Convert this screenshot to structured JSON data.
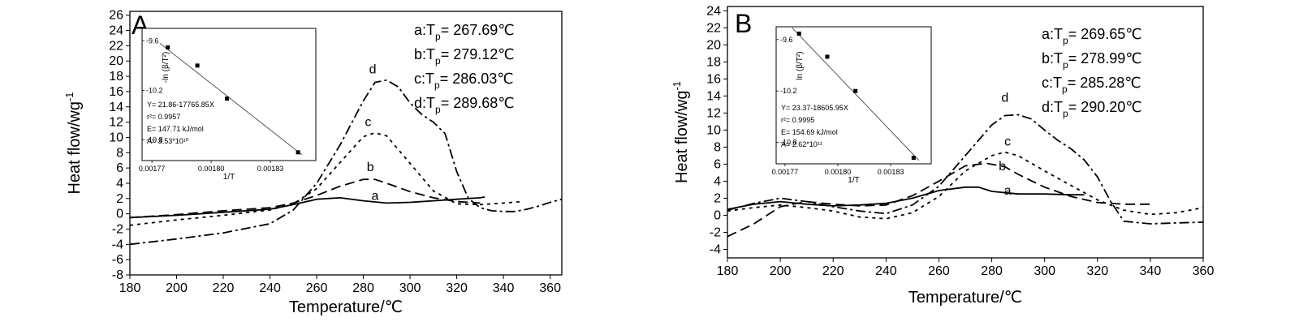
{
  "chart_data": [
    {
      "panel_letter": "A",
      "type": "line",
      "xlabel": "Temperature/℃",
      "ylabel": "Heat flow/wg",
      "ylabel_sup": "-1",
      "xlim": [
        180,
        365
      ],
      "ylim": [
        -8,
        26.5
      ],
      "xticks": [
        180,
        200,
        220,
        240,
        260,
        280,
        300,
        320,
        340,
        360
      ],
      "yticks": [
        -8,
        -6,
        -4,
        -2,
        0,
        2,
        4,
        6,
        8,
        10,
        12,
        14,
        16,
        18,
        20,
        22,
        24,
        26
      ],
      "tp_annotations": [
        {
          "prefix": "a:T",
          "sub": "p",
          "value": "= 267.69℃"
        },
        {
          "prefix": "b:T",
          "sub": "p",
          "value": "= 279.12℃"
        },
        {
          "prefix": "c:T",
          "sub": "p",
          "value": "= 286.03℃"
        },
        {
          "prefix": "d:T",
          "sub": "p",
          "value": "= 289.68℃"
        }
      ],
      "series": [
        {
          "name": "a",
          "label_at": [
            285,
            1.8
          ],
          "dash": "none",
          "x": [
            180,
            200,
            220,
            240,
            250,
            260,
            270,
            280,
            290,
            300,
            310,
            320,
            330,
            332
          ],
          "y": [
            -0.5,
            -0.2,
            0.2,
            0.6,
            1.2,
            1.9,
            2.1,
            1.7,
            1.4,
            1.5,
            1.7,
            1.9,
            2.1,
            2.2
          ]
        },
        {
          "name": "b",
          "label_at": [
            283,
            5.6
          ],
          "dash": "12,6",
          "x": [
            180,
            200,
            220,
            240,
            250,
            260,
            270,
            280,
            285,
            290,
            300,
            310,
            320,
            325,
            330
          ],
          "y": [
            -0.5,
            -0.1,
            0.4,
            0.8,
            1.4,
            2.4,
            3.6,
            4.5,
            4.5,
            4.0,
            2.9,
            2.1,
            1.6,
            1.5,
            1.4
          ]
        },
        {
          "name": "c",
          "label_at": [
            282,
            11.5
          ],
          "dash": "4,5",
          "x": [
            180,
            200,
            220,
            240,
            250,
            260,
            270,
            280,
            285,
            290,
            300,
            310,
            320,
            330,
            340,
            348
          ],
          "y": [
            -1.5,
            -0.8,
            -0.2,
            0.5,
            1.3,
            3.3,
            6.7,
            10.1,
            10.6,
            10.2,
            6.6,
            3.0,
            1.3,
            1.2,
            1.4,
            1.6
          ]
        },
        {
          "name": "d",
          "label_at": [
            284,
            18.4
          ],
          "dash": "12,4,3,4",
          "x": [
            180,
            200,
            220,
            240,
            250,
            260,
            270,
            280,
            285,
            290,
            295,
            300,
            305,
            310,
            315,
            320,
            325,
            330,
            335,
            340,
            345,
            350,
            355,
            360,
            365
          ],
          "y": [
            -4.0,
            -3.3,
            -2.5,
            -1.3,
            0.5,
            4.0,
            9.0,
            14.8,
            17.2,
            17.5,
            16.6,
            14.5,
            13.0,
            12.0,
            10.5,
            5.5,
            2.0,
            0.8,
            0.4,
            0.3,
            0.3,
            0.6,
            1.0,
            1.5,
            1.9
          ]
        }
      ],
      "inset": {
        "xlabel": "1/T",
        "ylabel": "-ln (β/T²)",
        "xticks": [
          0.00177,
          0.0018,
          0.00183
        ],
        "xtick_labels": [
          "0.00177",
          "0.00180",
          "0.00183"
        ],
        "yticks": [
          -9.6,
          -10.2,
          -10.8
        ],
        "ytick_labels": [
          "-9.6",
          "-10.2",
          "-10.8"
        ],
        "xlim": [
          0.001765,
          0.001853
        ],
        "ylim": [
          -11.05,
          -9.45
        ],
        "points": {
          "x": [
            0.001778,
            0.001793,
            0.001808,
            0.001844
          ],
          "y": [
            -9.68,
            -9.9,
            -10.3,
            -10.95
          ]
        },
        "fit_x": [
          0.001774,
          0.001846
        ],
        "fit_y": [
          -9.63,
          -10.98
        ],
        "annotations": [
          "Y= 21.86-17765.85X",
          "r²= 0.9957",
          "E= 147.71 kJ/mol",
          "A= 3.53*10¹⁰"
        ]
      }
    },
    {
      "panel_letter": "B",
      "type": "line",
      "xlabel": "Temperature/℃",
      "ylabel": "Heat flow/wg",
      "ylabel_sup": "-1",
      "xlim": [
        180,
        360
      ],
      "ylim": [
        -5,
        24.5
      ],
      "xticks": [
        180,
        200,
        220,
        240,
        260,
        280,
        300,
        320,
        340,
        360
      ],
      "yticks": [
        -4,
        -2,
        0,
        2,
        4,
        6,
        8,
        10,
        12,
        14,
        16,
        18,
        20,
        22,
        24
      ],
      "tp_annotations": [
        {
          "prefix": "a:T",
          "sub": "p",
          "value": "= 269.65℃"
        },
        {
          "prefix": "b:T",
          "sub": "p",
          "value": "= 278.99℃"
        },
        {
          "prefix": "c:T",
          "sub": "p",
          "value": "= 285.28℃"
        },
        {
          "prefix": "d:T",
          "sub": "p",
          "value": "= 290.20℃"
        }
      ],
      "series": [
        {
          "name": "a",
          "label_at": [
            286,
            2.4
          ],
          "dash": "none",
          "x": [
            180,
            190,
            200,
            210,
            220,
            230,
            240,
            250,
            260,
            270,
            275,
            280,
            290,
            300,
            310,
            315
          ],
          "y": [
            0.7,
            1.3,
            1.6,
            1.3,
            1.1,
            1.2,
            1.4,
            2.0,
            2.9,
            3.3,
            3.3,
            2.8,
            2.5,
            2.5,
            2.4,
            2.4
          ]
        },
        {
          "name": "b",
          "label_at": [
            284,
            5.3
          ],
          "dash": "12,6",
          "x": [
            180,
            190,
            200,
            210,
            220,
            230,
            240,
            250,
            260,
            270,
            278,
            285,
            290,
            300,
            310,
            320,
            330,
            340
          ],
          "y": [
            -2.5,
            -1.0,
            1.0,
            1.6,
            1.3,
            1.1,
            1.2,
            2.3,
            4.0,
            5.8,
            6.1,
            5.7,
            4.8,
            3.3,
            2.2,
            1.5,
            1.3,
            1.3
          ]
        },
        {
          "name": "c",
          "label_at": [
            286,
            8.2
          ],
          "dash": "4,5",
          "x": [
            180,
            190,
            200,
            210,
            220,
            230,
            240,
            250,
            260,
            270,
            280,
            285,
            290,
            300,
            310,
            320,
            330,
            340,
            350,
            360
          ],
          "y": [
            0.5,
            0.9,
            1.2,
            0.9,
            0.5,
            -0.2,
            -0.4,
            0.3,
            2.2,
            5.2,
            7.0,
            7.4,
            7.0,
            5.2,
            3.5,
            1.8,
            0.6,
            0.1,
            0.3,
            0.9
          ]
        },
        {
          "name": "d",
          "label_at": [
            285,
            13.3
          ],
          "dash": "12,4,3,4",
          "x": [
            180,
            190,
            200,
            210,
            220,
            230,
            240,
            250,
            260,
            270,
            280,
            285,
            290,
            295,
            300,
            305,
            310,
            315,
            320,
            325,
            330,
            340,
            350,
            360
          ],
          "y": [
            0.6,
            1.4,
            2.0,
            1.6,
            1.0,
            0.5,
            0.2,
            1.2,
            3.4,
            7.0,
            10.6,
            11.7,
            11.8,
            11.3,
            10.0,
            8.8,
            7.8,
            6.5,
            4.5,
            1.6,
            -0.7,
            -1.0,
            -0.9,
            -0.8
          ]
        }
      ],
      "inset": {
        "xlabel": "1/T",
        "ylabel": "ln (β/T²)",
        "xticks": [
          0.00177,
          0.0018,
          0.00183
        ],
        "xtick_labels": [
          "0.00177",
          "0.00180",
          "0.00183"
        ],
        "yticks": [
          -9.6,
          -10.2,
          -10.8
        ],
        "ytick_labels": [
          "-9.6",
          "-10.2",
          "-10.8"
        ],
        "xlim": [
          0.001765,
          0.001853
        ],
        "ylim": [
          -11.05,
          -9.45
        ],
        "points": {
          "x": [
            0.001778,
            0.001794,
            0.00181,
            0.001843
          ],
          "y": [
            -9.53,
            -9.8,
            -10.2,
            -10.98
          ]
        },
        "fit_x": [
          0.001774,
          0.001846
        ],
        "fit_y": [
          -9.46,
          -11.01
        ],
        "annotations": [
          "Y= 23.37-18605.95X",
          "r²= 0.9995",
          "E= 154.69 kJ/mol",
          "A= 2.62*10¹¹"
        ]
      }
    }
  ]
}
